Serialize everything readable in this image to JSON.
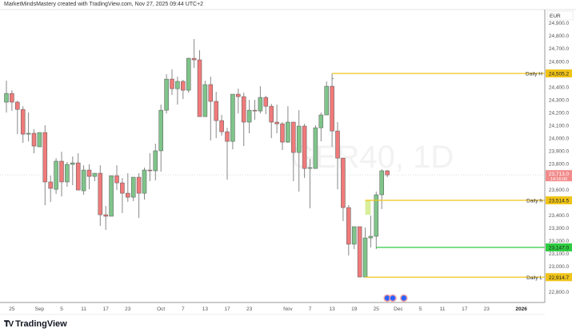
{
  "caption": "MarketMindsMastery created with TradingView.com, Nov 27, 2025 09:44 UTC+2",
  "watermark": "GER40, 1D",
  "logo_text": "TradingView",
  "currency": "EUR",
  "colors": {
    "up": "#7fc48a",
    "down": "#f07a7a",
    "outline": "#555555",
    "level_yellow": "#f0c419",
    "level_green": "#2ecc40",
    "zone_fill": "#d8ee9a",
    "last_price": "#f28b8b",
    "event": "#2962ff"
  },
  "chart_data": {
    "type": "candlestick",
    "title": "",
    "ylim": [
      22700,
      24930
    ],
    "yticks": [
      24900,
      24800,
      24700,
      24600,
      24400,
      24300,
      24200,
      24100,
      24000,
      23900,
      23800,
      23600,
      23400,
      23300,
      23200,
      23100,
      23000,
      22800
    ],
    "ytick_labels": [
      "24,900.0",
      "24,800.0",
      "24,700.0",
      "24,600.0",
      "24,400.0",
      "24,300.0",
      "24,200.0",
      "24,100.0",
      "24,000.0",
      "23,900.0",
      "23,800.0",
      "23,600.0",
      "23,400.0",
      "23,300.0",
      "23,200.0",
      "23,100.0",
      "23,000.0",
      "22,800.0"
    ],
    "xticks": [
      {
        "label": "25",
        "date": "2025-08-25"
      },
      {
        "label": "Sep",
        "date": "2025-09-01"
      },
      {
        "label": "5",
        "date": "2025-09-05"
      },
      {
        "label": "11",
        "date": "2025-09-11"
      },
      {
        "label": "17",
        "date": "2025-09-17"
      },
      {
        "label": "23",
        "date": "2025-09-23"
      },
      {
        "label": "Oct",
        "date": "2025-10-01"
      },
      {
        "label": "7",
        "date": "2025-10-07"
      },
      {
        "label": "13",
        "date": "2025-10-13"
      },
      {
        "label": "17",
        "date": "2025-10-17"
      },
      {
        "label": "23",
        "date": "2025-10-23"
      },
      {
        "label": "Nov",
        "date": "2025-11-03"
      },
      {
        "label": "7",
        "date": "2025-11-07"
      },
      {
        "label": "13",
        "date": "2025-11-13"
      },
      {
        "label": "19",
        "date": "2025-11-19"
      },
      {
        "label": "25",
        "date": "2025-11-25"
      },
      {
        "label": "Dec",
        "date": "2025-12-01"
      },
      {
        "label": "5",
        "date": "2025-12-05"
      },
      {
        "label": "11",
        "date": "2025-12-11"
      },
      {
        "label": "17",
        "date": "2025-12-17"
      },
      {
        "label": "23",
        "date": "2025-12-23"
      },
      {
        "label": "2026",
        "date": "2026-01-01"
      }
    ],
    "dates": [
      "2025-08-22",
      "2025-08-25",
      "2025-08-26",
      "2025-08-27",
      "2025-08-28",
      "2025-08-29",
      "2025-09-01",
      "2025-09-02",
      "2025-09-03",
      "2025-09-04",
      "2025-09-05",
      "2025-09-08",
      "2025-09-09",
      "2025-09-10",
      "2025-09-11",
      "2025-09-12",
      "2025-09-15",
      "2025-09-16",
      "2025-09-17",
      "2025-09-18",
      "2025-09-19",
      "2025-09-22",
      "2025-09-23",
      "2025-09-24",
      "2025-09-25",
      "2025-09-26",
      "2025-09-29",
      "2025-09-30",
      "2025-10-01",
      "2025-10-02",
      "2025-10-03",
      "2025-10-06",
      "2025-10-07",
      "2025-10-08",
      "2025-10-09",
      "2025-10-10",
      "2025-10-13",
      "2025-10-14",
      "2025-10-15",
      "2025-10-16",
      "2025-10-17",
      "2025-10-20",
      "2025-10-21",
      "2025-10-22",
      "2025-10-23",
      "2025-10-24",
      "2025-10-27",
      "2025-10-28",
      "2025-10-29",
      "2025-10-30",
      "2025-10-31",
      "2025-11-03",
      "2025-11-04",
      "2025-11-05",
      "2025-11-06",
      "2025-11-07",
      "2025-11-10",
      "2025-11-11",
      "2025-11-12",
      "2025-11-13",
      "2025-11-14",
      "2025-11-17",
      "2025-11-18",
      "2025-11-19",
      "2025-11-20",
      "2025-11-21",
      "2025-11-24",
      "2025-11-25",
      "2025-11-26",
      "2025-11-27"
    ],
    "ohlc": [
      [
        24281,
        24449,
        24200,
        24349
      ],
      [
        24349,
        24374,
        24212,
        24281
      ],
      [
        24281,
        24293,
        24031,
        24224
      ],
      [
        24224,
        24249,
        23963,
        24031
      ],
      [
        24031,
        24200,
        23975,
        24038
      ],
      [
        24038,
        24069,
        23882,
        23938
      ],
      [
        23932,
        24044,
        23932,
        24044
      ],
      [
        24044,
        24100,
        23477,
        23658
      ],
      [
        23658,
        23707,
        23502,
        23608
      ],
      [
        23601,
        23844,
        23564,
        23820
      ],
      [
        23820,
        23894,
        23545,
        23658
      ],
      [
        23658,
        23813,
        23620,
        23795
      ],
      [
        23795,
        23857,
        23633,
        23807
      ],
      [
        23807,
        23882,
        23595,
        23595
      ],
      [
        23589,
        23788,
        23558,
        23751
      ],
      [
        23751,
        23795,
        23601,
        23701
      ],
      [
        23701,
        23726,
        23664,
        23726
      ],
      [
        23726,
        23788,
        23315,
        23402
      ],
      [
        23402,
        23471,
        23284,
        23390
      ],
      [
        23390,
        23707,
        23390,
        23707
      ],
      [
        23707,
        23788,
        23595,
        23651
      ],
      [
        23651,
        23689,
        23415,
        23570
      ],
      [
        23570,
        23726,
        23502,
        23539
      ],
      [
        23539,
        23695,
        23508,
        23695
      ],
      [
        23695,
        23726,
        23377,
        23570
      ],
      [
        23570,
        23770,
        23520,
        23751
      ],
      [
        23751,
        23882,
        23664,
        23745
      ],
      [
        23745,
        23957,
        23670,
        23901
      ],
      [
        23901,
        24262,
        23739,
        24218
      ],
      [
        24218,
        24499,
        24193,
        24461
      ],
      [
        24461,
        24536,
        24337,
        24386
      ],
      [
        24386,
        24480,
        24262,
        24443
      ],
      [
        24443,
        24455,
        24305,
        24374
      ],
      [
        24374,
        24629,
        24355,
        24623
      ],
      [
        24623,
        24773,
        24548,
        24611
      ],
      [
        24611,
        24686,
        24168,
        24168
      ],
      [
        24168,
        24449,
        24168,
        24418
      ],
      [
        24418,
        24480,
        23982,
        24287
      ],
      [
        24287,
        24362,
        24000,
        24137
      ],
      [
        24137,
        24181,
        24019,
        24050
      ],
      [
        24050,
        24081,
        23676,
        23975
      ],
      [
        23975,
        24343,
        23913,
        24343
      ],
      [
        24343,
        24386,
        24193,
        24324
      ],
      [
        24324,
        24355,
        23938,
        24125
      ],
      [
        24125,
        24299,
        24038,
        24218
      ],
      [
        24218,
        24299,
        24143,
        24212
      ],
      [
        24212,
        24405,
        24193,
        24318
      ],
      [
        24318,
        24330,
        24187,
        24249
      ],
      [
        24249,
        24268,
        24000,
        24125
      ],
      [
        24125,
        24262,
        24038,
        24112
      ],
      [
        24112,
        24125,
        23907,
        23969
      ],
      [
        23969,
        24249,
        23963,
        24125
      ],
      [
        24125,
        24125,
        23664,
        23888
      ],
      [
        23888,
        24218,
        23583,
        24094
      ],
      [
        24094,
        24112,
        23689,
        23763
      ],
      [
        23770,
        23838,
        23452,
        23770
      ],
      [
        23763,
        24100,
        23763,
        24081
      ],
      [
        24081,
        24200,
        23975,
        24181
      ],
      [
        24181,
        24443,
        24181,
        24405
      ],
      [
        24405,
        24505.2,
        23932,
        24056
      ],
      [
        24056,
        24125,
        23601,
        23844
      ],
      [
        23844,
        23844,
        23352,
        23458
      ],
      [
        23458,
        23477,
        23084,
        23172
      ],
      [
        23172,
        23309,
        23134,
        23309
      ],
      [
        23309,
        23309,
        22914.7,
        22916
      ],
      [
        22916,
        23302,
        22914.7,
        23221
      ],
      [
        23221,
        23396,
        23147,
        23234
      ],
      [
        23234,
        23583,
        23134,
        23558
      ],
      [
        23558,
        23757,
        23446,
        23745
      ],
      [
        23745,
        23751,
        23695,
        23713
      ]
    ],
    "levels": [
      {
        "label": "Daily H",
        "price": 24505.2,
        "price_label": "24,505.2",
        "from_date": "2025-11-13",
        "color": "level_yellow"
      },
      {
        "label": "Daily h",
        "price": 23514.5,
        "price_label": "23,514.5",
        "from_date": "2025-11-21",
        "color": "level_yellow"
      },
      {
        "label": "",
        "price": 23147.0,
        "price_label": "23,147.0",
        "from_date": "2025-11-25",
        "color": "level_green"
      },
      {
        "label": "Daily L",
        "price": 22914.7,
        "price_label": "22,914.7",
        "from_date": "2025-11-21",
        "color": "level_yellow"
      }
    ],
    "zone": {
      "from_date": "2025-11-21",
      "to_date": "2025-11-24",
      "top": 23514.5,
      "bottom": 23402
    },
    "last_price": {
      "value": 23713.0,
      "label": "23,713.0",
      "countdown": "14:16:00"
    },
    "events": [
      "2025-11-27",
      "2025-11-28",
      "2025-12-02"
    ]
  }
}
